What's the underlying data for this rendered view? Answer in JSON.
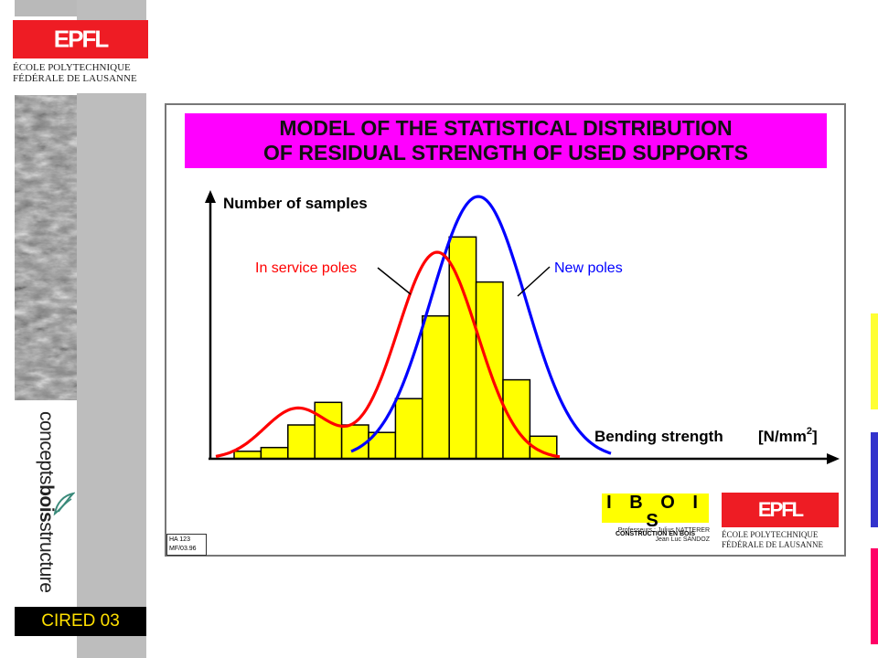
{
  "sidebar": {
    "logo_text": "EPFL",
    "school_line1": "ÉCOLE POLYTECHNIQUE",
    "school_line2": "FÉDÉRALE DE LAUSANNE",
    "brand_parts": [
      "concepts",
      "bois",
      "structure"
    ],
    "footer_label": "CIRED 03"
  },
  "slide": {
    "title_line1": "MODEL OF THE STATISTICAL DISTRIBUTION",
    "title_line2": "OF RESIDUAL STRENGTH OF USED SUPPORTS",
    "y_axis_label": "Number of samples",
    "x_axis_label": "Bending strength",
    "x_axis_unit_base": "[N/mm",
    "x_axis_unit_sup": "2",
    "x_axis_unit_end": "]",
    "label_in_service": "In service poles",
    "label_new": "New poles",
    "ibois_title": "I B O I S",
    "ibois_sub": "CONSTRUCTION EN BOIS",
    "ibois_prof1": "Professeurs : Julius NATTERER",
    "ibois_prof2": "Jean Luc SANDOZ",
    "epfl2_logo": "EPFL",
    "epfl2_line1": "ÉCOLE POLYTECHNIQUE",
    "epfl2_line2": "FÉDÉRALE DE LAUSANNE",
    "ref_line1": "HA 123",
    "ref_line2": "MF/03.96"
  },
  "colors": {
    "title_bg": "#ff00ff",
    "bars": "#ffff00",
    "in_service_curve": "#ff0000",
    "new_curve": "#0000ff",
    "accent_yellow": "#ffff33",
    "accent_blue": "#3333cc",
    "accent_pink": "#ff0066"
  },
  "chart_data": {
    "type": "bar",
    "title": "MODEL OF THE STATISTICAL DISTRIBUTION OF RESIDUAL STRENGTH OF USED SUPPORTS",
    "xlabel": "Bending strength [N/mm2]",
    "ylabel": "Number of samples",
    "values": [
      2,
      3,
      9,
      15,
      9,
      7,
      16,
      38,
      59,
      47,
      21,
      6
    ],
    "ylim": [
      0,
      70
    ],
    "grid": false,
    "series": [
      {
        "name": "In service poles",
        "type": "line",
        "color": "#ff0000"
      },
      {
        "name": "New poles",
        "type": "line",
        "color": "#0000ff"
      }
    ]
  }
}
